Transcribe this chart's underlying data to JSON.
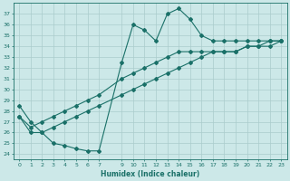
{
  "title": "",
  "xlabel": "Humidex (Indice chaleur)",
  "ylabel": "",
  "bg_color": "#cce8e8",
  "grid_color": "#aacccc",
  "line_color": "#1a7068",
  "ylim": [
    23.5,
    38.0
  ],
  "xlim": [
    -0.5,
    23.5
  ],
  "yticks": [
    24,
    25,
    26,
    27,
    28,
    29,
    30,
    31,
    32,
    33,
    34,
    35,
    36,
    37
  ],
  "xticks": [
    0,
    1,
    2,
    3,
    4,
    5,
    6,
    7,
    9,
    10,
    11,
    12,
    13,
    14,
    15,
    16,
    17,
    18,
    19,
    20,
    21,
    22,
    23
  ],
  "line1_x": [
    0,
    1,
    2,
    3,
    4,
    5,
    6,
    7,
    9,
    10,
    11,
    12,
    13,
    14,
    15,
    16,
    17,
    18,
    19,
    20,
    21,
    22,
    23
  ],
  "line1_y": [
    28.5,
    27.0,
    26.0,
    25.0,
    24.8,
    24.5,
    24.3,
    24.3,
    32.5,
    36.0,
    35.5,
    34.5,
    37.0,
    37.5,
    36.5,
    35.0,
    34.5,
    34.5,
    34.5,
    34.5,
    34.5,
    34.5,
    34.5
  ],
  "line2_x": [
    0,
    1,
    2,
    3,
    4,
    5,
    6,
    7,
    9,
    10,
    11,
    12,
    13,
    14,
    15,
    16,
    17,
    18,
    19,
    20,
    21,
    22,
    23
  ],
  "line2_y": [
    27.5,
    26.0,
    26.0,
    26.5,
    27.0,
    27.5,
    28.0,
    28.5,
    29.5,
    30.0,
    30.5,
    31.0,
    31.5,
    32.0,
    32.5,
    33.0,
    33.5,
    33.5,
    33.5,
    34.0,
    34.0,
    34.0,
    34.5
  ],
  "line3_x": [
    0,
    1,
    2,
    3,
    4,
    5,
    6,
    7,
    9,
    10,
    11,
    12,
    13,
    14,
    15,
    16,
    17,
    18,
    19,
    20,
    21,
    22,
    23
  ],
  "line3_y": [
    27.5,
    26.5,
    27.0,
    27.5,
    28.0,
    28.5,
    29.0,
    29.5,
    31.0,
    31.5,
    32.0,
    32.5,
    33.0,
    33.5,
    33.5,
    33.5,
    33.5,
    33.5,
    33.5,
    34.0,
    34.0,
    34.5,
    34.5
  ],
  "marker": "D",
  "markersize": 2.0,
  "linewidth": 0.8
}
